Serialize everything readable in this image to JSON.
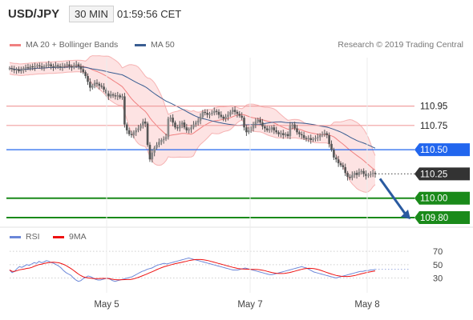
{
  "header": {
    "pair": "USD/JPY",
    "timeframe": "30 MIN",
    "time": "01:59:56 CET"
  },
  "legend": {
    "ma20": "MA 20 + Bollinger Bands",
    "ma50": "MA 50",
    "rsi": "RSI",
    "ma9": "9MA",
    "credit": "Research © 2019 Trading Central"
  },
  "colors": {
    "ma20": "#f08080",
    "band_fill": "#fde3e3",
    "ma50": "#3a5e92",
    "candle": "#555555",
    "resistance": "#f0a0a0",
    "pivot": "#2266ee",
    "support": "#1a8a1a",
    "last_price": "#333333",
    "rsi": "#6a86d8",
    "ma9": "#ee1111",
    "arrow": "#2a5aa0"
  },
  "chart_data": {
    "type": "candlestick",
    "x_ticks": [
      "May 5",
      "May 7",
      "May 8"
    ],
    "ylim": [
      109.75,
      111.45
    ],
    "levels": [
      {
        "value": 110.95,
        "label": "110.95",
        "kind": "resistance"
      },
      {
        "value": 110.75,
        "label": "110.75",
        "kind": "resistance"
      },
      {
        "value": 110.5,
        "label": "110.50",
        "kind": "pivot"
      },
      {
        "value": 110.25,
        "label": "110.25",
        "kind": "last"
      },
      {
        "value": 110.0,
        "label": "110.00",
        "kind": "support"
      },
      {
        "value": 109.8,
        "label": "109.80",
        "kind": "support"
      }
    ],
    "close": [
      111.34,
      111.33,
      111.32,
      111.33,
      111.31,
      111.32,
      111.34,
      111.35,
      111.34,
      111.36,
      111.35,
      111.36,
      111.37,
      111.36,
      111.35,
      111.36,
      111.37,
      111.38,
      111.36,
      111.35,
      111.37,
      111.36,
      111.35,
      111.36,
      111.37,
      111.38,
      111.36,
      111.35,
      111.37,
      111.38,
      111.36,
      111.33,
      111.3,
      111.26,
      111.2,
      111.14,
      111.16,
      111.19,
      111.18,
      111.16,
      111.15,
      111.12,
      111.08,
      111.05,
      111.07,
      111.06,
      111.05,
      111.06,
      111.04,
      111.05,
      110.76,
      110.7,
      110.66,
      110.65,
      110.68,
      110.7,
      110.72,
      110.75,
      110.79,
      110.77,
      110.55,
      110.4,
      110.47,
      110.52,
      110.55,
      110.58,
      110.6,
      110.61,
      110.63,
      110.82,
      110.83,
      110.78,
      110.73,
      110.72,
      110.76,
      110.78,
      110.73,
      110.7,
      110.71,
      110.73,
      110.76,
      110.78,
      110.8,
      110.84,
      110.89,
      110.88,
      110.86,
      110.87,
      110.88,
      110.9,
      110.89,
      110.86,
      110.84,
      110.82,
      110.84,
      110.86,
      110.89,
      110.91,
      110.89,
      110.87,
      110.85,
      110.83,
      110.73,
      110.68,
      110.7,
      110.72,
      110.76,
      110.79,
      110.81,
      110.78,
      110.74,
      110.72,
      110.7,
      110.71,
      110.73,
      110.7,
      110.68,
      110.66,
      110.67,
      110.65,
      110.66,
      110.64,
      110.75,
      110.76,
      110.72,
      110.68,
      110.66,
      110.65,
      110.62,
      110.61,
      110.62,
      110.6,
      110.61,
      110.62,
      110.63,
      110.65,
      110.66,
      110.67,
      110.65,
      110.56,
      110.5,
      110.42,
      110.4,
      110.36,
      110.34,
      110.32,
      110.26,
      110.22,
      110.21,
      110.24,
      110.26,
      110.24,
      110.27,
      110.28,
      110.25,
      110.23,
      110.24,
      110.25,
      110.26,
      110.25
    ],
    "rsi": {
      "ylim": [
        15,
        75
      ],
      "y_ticks": [
        70,
        50,
        30
      ],
      "values": [
        42,
        38,
        40,
        44,
        47,
        46,
        48,
        50,
        49,
        51,
        53,
        52,
        55,
        53,
        54,
        56,
        55,
        53,
        52,
        50,
        48,
        45,
        41,
        38,
        36,
        34,
        30,
        27,
        25,
        26,
        29,
        31,
        33,
        32,
        30,
        28,
        27,
        27,
        28,
        29,
        30,
        28,
        26,
        25,
        26,
        27,
        28,
        29,
        30,
        31,
        32,
        34,
        36,
        38,
        40,
        41,
        43,
        44,
        45,
        47,
        49,
        50,
        51,
        52,
        51,
        52,
        53,
        54,
        55,
        56,
        57,
        58,
        59,
        60,
        59,
        58,
        57,
        56,
        55,
        54,
        53,
        52,
        51,
        50,
        49,
        48,
        47,
        46,
        45,
        44,
        43,
        42,
        42,
        42,
        43,
        44,
        45,
        44,
        43,
        42,
        41,
        40,
        39,
        38,
        37,
        36,
        35,
        35,
        36,
        37,
        38,
        39,
        40,
        41,
        42,
        43,
        44,
        45,
        46,
        47,
        46,
        45,
        43,
        41,
        39,
        38,
        37,
        36,
        35,
        34,
        33,
        32,
        31,
        30,
        31,
        32,
        33,
        34,
        35,
        36,
        37,
        38,
        39,
        40,
        40,
        41,
        41,
        42,
        42,
        43
      ]
    }
  }
}
